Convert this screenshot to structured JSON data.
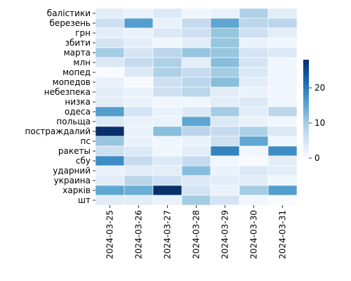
{
  "chart_data": {
    "type": "heatmap",
    "title": "",
    "xlabel": "",
    "ylabel": "",
    "x": [
      "2024-03-25",
      "2024-03-26",
      "2024-03-27",
      "2024-03-28",
      "2024-03-29",
      "2024-03-30",
      "2024-03-31"
    ],
    "y": [
      "балістики",
      "березень",
      "грн",
      "збити",
      "марта",
      "млн",
      "мопед",
      "мопедов",
      "небезпека",
      "низка",
      "одеса",
      "польща",
      "постраждалий",
      "пс",
      "ракеты",
      "сбу",
      "ударний",
      "украина",
      "харків",
      "шт"
    ],
    "values": [
      [
        3,
        2,
        4,
        1,
        2,
        9,
        3
      ],
      [
        6,
        16,
        2,
        7,
        15,
        8,
        8
      ],
      [
        3,
        2,
        4,
        6,
        11,
        6,
        3
      ],
      [
        5,
        3,
        1,
        3,
        11,
        2,
        1
      ],
      [
        10,
        5,
        8,
        11,
        11,
        5,
        4
      ],
      [
        4,
        7,
        9,
        3,
        12,
        5,
        1
      ],
      [
        0,
        4,
        9,
        7,
        10,
        4,
        1
      ],
      [
        2,
        0,
        6,
        8,
        12,
        3,
        1
      ],
      [
        3,
        2,
        6,
        8,
        3,
        2,
        1
      ],
      [
        3,
        2,
        1,
        1,
        3,
        4,
        1
      ],
      [
        16,
        5,
        2,
        4,
        10,
        3,
        8
      ],
      [
        4,
        2,
        2,
        15,
        4,
        2,
        1
      ],
      [
        28,
        2,
        12,
        8,
        7,
        9,
        4
      ],
      [
        11,
        2,
        1,
        2,
        6,
        15,
        1
      ],
      [
        6,
        4,
        1,
        3,
        19,
        1,
        18
      ],
      [
        18,
        7,
        4,
        7,
        1,
        0,
        3
      ],
      [
        2,
        3,
        3,
        12,
        2,
        4,
        3
      ],
      [
        3,
        8,
        6,
        4,
        3,
        3,
        1
      ],
      [
        15,
        14,
        28,
        5,
        2,
        10,
        16
      ],
      [
        3,
        3,
        2,
        10,
        5,
        1,
        0
      ]
    ],
    "colorbar": {
      "vmin": 0,
      "vmax": 28,
      "ticks": [
        0,
        10,
        20
      ]
    },
    "colormap": "Blues"
  }
}
